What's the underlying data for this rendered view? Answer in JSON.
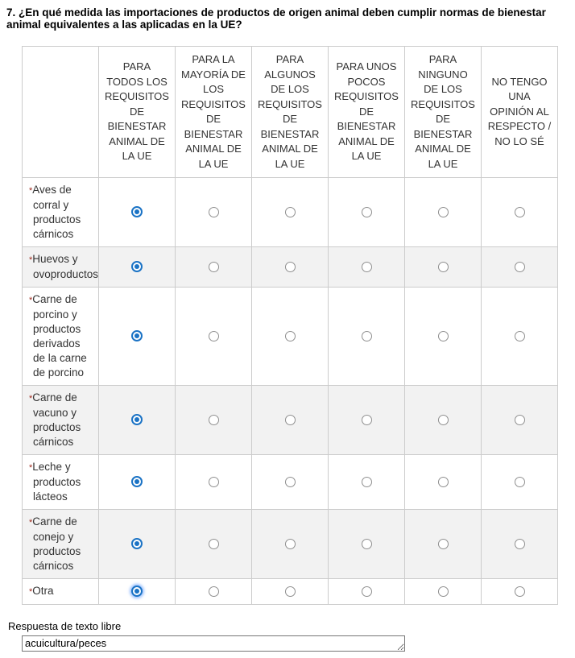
{
  "question": {
    "title": "7. ¿En qué medida las importaciones de productos de origen animal deben cumplir normas de bienestar animal equivalentes a las aplicadas en la UE?"
  },
  "matrix": {
    "required_mark": "*",
    "columns": [
      "PARA TODOS LOS REQUISITOS DE BIENESTAR ANIMAL DE LA UE",
      "PARA LA MAYORÍA DE LOS REQUISITOS DE BIENESTAR ANIMAL DE LA UE",
      "PARA ALGUNOS DE LOS REQUISITOS DE BIENESTAR ANIMAL DE LA UE",
      "PARA UNOS POCOS REQUISITOS DE BIENESTAR ANIMAL DE LA UE",
      "PARA NINGUNO DE LOS REQUISITOS DE BIENESTAR ANIMAL DE LA UE",
      "NO TENGO UNA OPINIÓN AL RESPECTO / NO LO SÉ"
    ],
    "rows": [
      {
        "label": "Aves de corral y productos cárnicos",
        "required": true,
        "selected": 0,
        "focused": false
      },
      {
        "label": "Huevos y ovoproductos",
        "required": true,
        "selected": 0,
        "focused": false
      },
      {
        "label": "Carne de porcino y productos derivados de la carne de porcino",
        "required": true,
        "selected": 0,
        "focused": false
      },
      {
        "label": "Carne de vacuno y productos cárnicos",
        "required": true,
        "selected": 0,
        "focused": false
      },
      {
        "label": "Leche y productos lácteos",
        "required": true,
        "selected": 0,
        "focused": false
      },
      {
        "label": "Carne de conejo y productos cárnicos",
        "required": true,
        "selected": 0,
        "focused": false
      },
      {
        "label": "Otra",
        "required": true,
        "selected": 0,
        "focused": true
      }
    ]
  },
  "free_text": {
    "label": "Respuesta de texto libre",
    "value": "acuicultura/peces"
  },
  "colors": {
    "selected_radio": "#1b73c5",
    "required_asterisk": "#9e2a1e",
    "stripe": "#f2f2f2",
    "table_border": "#cccccc"
  }
}
